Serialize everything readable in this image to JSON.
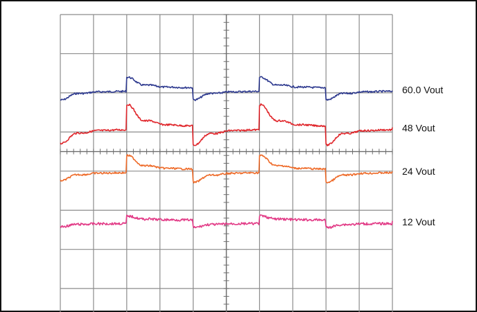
{
  "chart_data": {
    "type": "line",
    "title": "",
    "xlabel": "",
    "ylabel": "",
    "grid": true,
    "x_divisions": 10,
    "y_divisions": 7,
    "series": [
      {
        "name": "60.0 Vout",
        "color": "#2e3a8f",
        "steady_level_div": 1.92,
        "step_times_div": [
          0.0,
          1.0,
          2.0,
          3.0,
          4.0,
          5.0,
          6.0,
          7.0,
          8.0,
          9.0,
          10.0
        ],
        "events": [
          {
            "t": 0.0,
            "type": "undershoot",
            "amplitude_div": 0.22
          },
          {
            "t": 2.0,
            "type": "overshoot",
            "amplitude_div": 0.27
          },
          {
            "t": 4.0,
            "type": "undershoot",
            "amplitude_div": 0.22
          },
          {
            "t": 6.0,
            "type": "overshoot",
            "amplitude_div": 0.27
          },
          {
            "t": 8.0,
            "type": "undershoot",
            "amplitude_div": 0.22
          }
        ]
      },
      {
        "name": "48 Vout",
        "color": "#e0262b",
        "steady_level_div": 2.9,
        "events": [
          {
            "t": 0.0,
            "type": "undershoot",
            "amplitude_div": 0.35
          },
          {
            "t": 2.0,
            "type": "overshoot",
            "amplitude_div": 0.55
          },
          {
            "t": 4.0,
            "type": "undershoot",
            "amplitude_div": 0.4
          },
          {
            "t": 6.0,
            "type": "overshoot",
            "amplitude_div": 0.55
          },
          {
            "t": 8.0,
            "type": "undershoot",
            "amplitude_div": 0.4
          }
        ]
      },
      {
        "name": "24 Vout",
        "color": "#ee6a28",
        "steady_level_div": 4.0,
        "events": [
          {
            "t": 0.0,
            "type": "undershoot",
            "amplitude_div": 0.2
          },
          {
            "t": 2.0,
            "type": "overshoot",
            "amplitude_div": 0.35
          },
          {
            "t": 4.0,
            "type": "undershoot",
            "amplitude_div": 0.25
          },
          {
            "t": 6.0,
            "type": "overshoot",
            "amplitude_div": 0.35
          },
          {
            "t": 8.0,
            "type": "undershoot",
            "amplitude_div": 0.25
          }
        ]
      },
      {
        "name": "12 Vout",
        "color": "#e23a86",
        "steady_level_div": 5.3,
        "events": [
          {
            "t": 0.0,
            "type": "undershoot",
            "amplitude_div": 0.08
          },
          {
            "t": 2.0,
            "type": "overshoot",
            "amplitude_div": 0.1
          },
          {
            "t": 4.0,
            "type": "undershoot",
            "amplitude_div": 0.1
          },
          {
            "t": 6.0,
            "type": "overshoot",
            "amplitude_div": 0.1
          },
          {
            "t": 8.0,
            "type": "undershoot",
            "amplitude_div": 0.1
          }
        ]
      }
    ]
  }
}
